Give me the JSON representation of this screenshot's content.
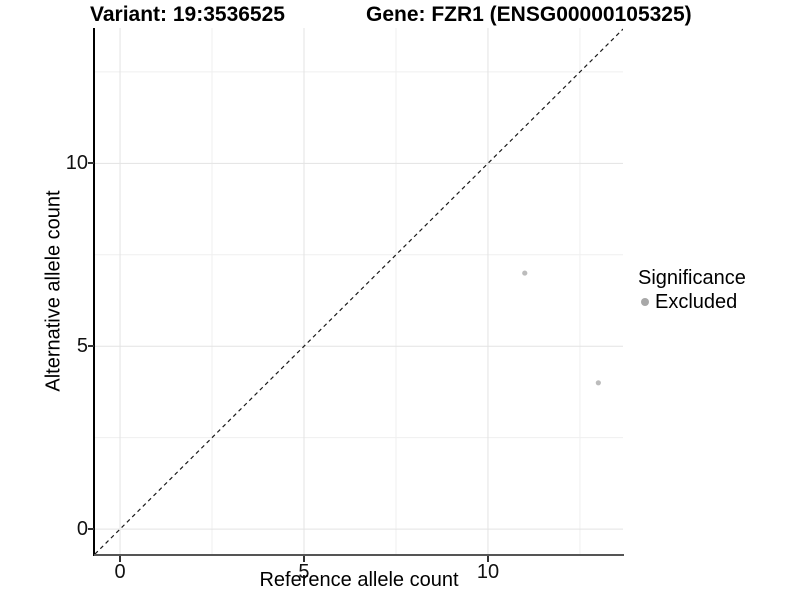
{
  "header": {
    "variant_title": "Variant: 19:3536525",
    "gene_title": "Gene: FZR1 (ENSG00000105325)"
  },
  "chart_data": {
    "type": "scatter",
    "xlabel": "Reference allele count",
    "ylabel": "Alternative allele count",
    "xlim": [
      -0.68,
      13.67
    ],
    "ylim": [
      -0.68,
      13.7
    ],
    "x_ticks": [
      0,
      5,
      10
    ],
    "y_ticks": [
      0,
      5,
      10
    ],
    "grid": {
      "major": true,
      "minor": true,
      "minor_step": 2.5
    },
    "identity_line": {
      "slope": 1,
      "intercept": 0,
      "style": "dashed",
      "color": "#1a1a1a"
    },
    "series": [
      {
        "name": "Excluded",
        "color": "#b0b0b0",
        "points": [
          {
            "x": 11,
            "y": 7
          },
          {
            "x": 13,
            "y": 4
          }
        ]
      }
    ],
    "legend": {
      "title": "Significance",
      "position": "right",
      "entries": [
        {
          "label": "Excluded",
          "color": "#a8a8a8"
        }
      ]
    }
  },
  "colors": {
    "grid_major": "#e3e3e3",
    "grid_minor": "#efefef",
    "axis_line_y": "#000000",
    "axis_line_x": "#555555",
    "tick_mark": "#333333",
    "text": "#000000"
  }
}
